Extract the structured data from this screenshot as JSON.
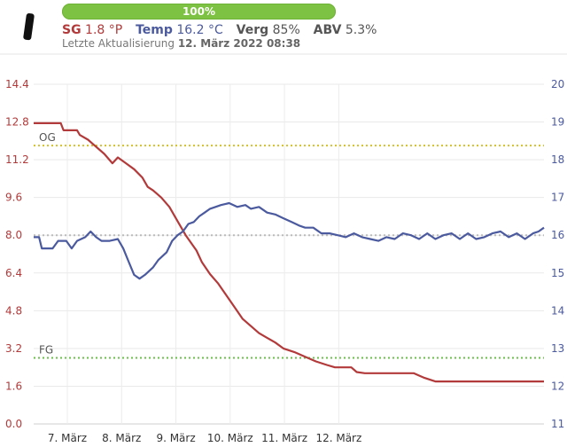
{
  "header": {
    "battery_percent": 100,
    "battery_label": "100%",
    "sg_label": "SG",
    "sg_value": "1.8 °P",
    "temp_label": "Temp",
    "temp_value": "16.2 °C",
    "verg_label": "Verg",
    "verg_value": "85%",
    "abv_label": "ABV",
    "abv_value": "5.3%",
    "updated_label": "Letzte Aktualisierung",
    "updated_value": "12. März 2022 08:38",
    "colors": {
      "sg": "#b23a3a",
      "temp": "#4b5a9e",
      "battery": "#7dc242"
    }
  },
  "chart_data": {
    "type": "line",
    "x": [
      "7. März",
      "8. März",
      "9. März",
      "10. März",
      "11. März",
      "12. März"
    ],
    "left_axis": {
      "ticks": [
        "14.4",
        "12.8",
        "11.2",
        "9.6",
        "8.0",
        "6.4",
        "4.8",
        "3.2",
        "1.6",
        "0.0"
      ],
      "range": [
        0,
        14.4
      ],
      "color": "#b23a3a"
    },
    "right_axis": {
      "ticks": [
        "20",
        "19",
        "18",
        "17",
        "16",
        "15",
        "14",
        "13",
        "12",
        "11"
      ],
      "range": [
        11,
        20
      ],
      "color": "#4b5a9e"
    },
    "reference_lines": [
      {
        "label": "OG",
        "value": 11.8,
        "color": "#d4c12a"
      },
      {
        "label": "FG",
        "value": 2.8,
        "color": "#6ac04a"
      },
      {
        "label": "",
        "value": 8.0,
        "color": "#bbbbbb"
      }
    ],
    "series": [
      {
        "name": "SG",
        "axis": "left",
        "color": "#b23a3a",
        "points": [
          [
            0.0,
            12.75
          ],
          [
            0.35,
            12.75
          ],
          [
            0.5,
            12.75
          ],
          [
            0.55,
            12.45
          ],
          [
            0.8,
            12.45
          ],
          [
            0.85,
            12.25
          ],
          [
            1.0,
            12.05
          ],
          [
            1.1,
            11.85
          ],
          [
            1.3,
            11.45
          ],
          [
            1.45,
            11.05
          ],
          [
            1.55,
            11.3
          ],
          [
            1.7,
            11.05
          ],
          [
            1.85,
            10.8
          ],
          [
            2.0,
            10.45
          ],
          [
            2.1,
            10.05
          ],
          [
            2.2,
            9.9
          ],
          [
            2.35,
            9.6
          ],
          [
            2.5,
            9.2
          ],
          [
            2.65,
            8.6
          ],
          [
            2.8,
            8.0
          ],
          [
            3.0,
            7.35
          ],
          [
            3.1,
            6.85
          ],
          [
            3.25,
            6.35
          ],
          [
            3.4,
            5.95
          ],
          [
            3.55,
            5.45
          ],
          [
            3.7,
            4.95
          ],
          [
            3.85,
            4.45
          ],
          [
            4.0,
            4.15
          ],
          [
            4.15,
            3.85
          ],
          [
            4.3,
            3.65
          ],
          [
            4.45,
            3.45
          ],
          [
            4.6,
            3.2
          ],
          [
            4.8,
            3.05
          ],
          [
            5.0,
            2.85
          ],
          [
            5.2,
            2.65
          ],
          [
            5.4,
            2.5
          ],
          [
            5.55,
            2.4
          ],
          [
            5.85,
            2.4
          ],
          [
            5.95,
            2.2
          ],
          [
            6.1,
            2.15
          ],
          [
            7.0,
            2.15
          ],
          [
            7.1,
            2.05
          ],
          [
            7.2,
            1.95
          ],
          [
            7.4,
            1.8
          ],
          [
            8.0,
            1.8
          ],
          [
            9.4,
            1.8
          ]
        ]
      },
      {
        "name": "Temp",
        "axis": "right",
        "color": "#4b5a9e",
        "points": [
          [
            0.0,
            15.95
          ],
          [
            0.1,
            15.95
          ],
          [
            0.15,
            15.65
          ],
          [
            0.35,
            15.65
          ],
          [
            0.45,
            15.85
          ],
          [
            0.6,
            15.85
          ],
          [
            0.7,
            15.65
          ],
          [
            0.8,
            15.85
          ],
          [
            0.95,
            15.95
          ],
          [
            1.05,
            16.1
          ],
          [
            1.15,
            15.95
          ],
          [
            1.25,
            15.85
          ],
          [
            1.4,
            15.85
          ],
          [
            1.55,
            15.9
          ],
          [
            1.65,
            15.65
          ],
          [
            1.75,
            15.3
          ],
          [
            1.85,
            14.95
          ],
          [
            1.95,
            14.85
          ],
          [
            2.05,
            14.95
          ],
          [
            2.2,
            15.15
          ],
          [
            2.3,
            15.35
          ],
          [
            2.45,
            15.55
          ],
          [
            2.55,
            15.85
          ],
          [
            2.65,
            16.0
          ],
          [
            2.75,
            16.1
          ],
          [
            2.85,
            16.3
          ],
          [
            2.95,
            16.35
          ],
          [
            3.05,
            16.5
          ],
          [
            3.15,
            16.6
          ],
          [
            3.25,
            16.7
          ],
          [
            3.35,
            16.75
          ],
          [
            3.45,
            16.8
          ],
          [
            3.6,
            16.85
          ],
          [
            3.75,
            16.75
          ],
          [
            3.9,
            16.8
          ],
          [
            4.0,
            16.7
          ],
          [
            4.15,
            16.75
          ],
          [
            4.3,
            16.6
          ],
          [
            4.45,
            16.55
          ],
          [
            4.6,
            16.45
          ],
          [
            4.75,
            16.35
          ],
          [
            4.9,
            16.25
          ],
          [
            5.0,
            16.2
          ],
          [
            5.15,
            16.2
          ],
          [
            5.3,
            16.05
          ],
          [
            5.45,
            16.05
          ],
          [
            5.6,
            16.0
          ],
          [
            5.75,
            15.95
          ],
          [
            5.9,
            16.05
          ],
          [
            6.05,
            15.95
          ],
          [
            6.2,
            15.9
          ],
          [
            6.35,
            15.85
          ],
          [
            6.5,
            15.95
          ],
          [
            6.65,
            15.9
          ],
          [
            6.8,
            16.05
          ],
          [
            6.95,
            16.0
          ],
          [
            7.1,
            15.9
          ],
          [
            7.25,
            16.05
          ],
          [
            7.4,
            15.9
          ],
          [
            7.55,
            16.0
          ],
          [
            7.7,
            16.05
          ],
          [
            7.85,
            15.9
          ],
          [
            8.0,
            16.05
          ],
          [
            8.15,
            15.9
          ],
          [
            8.3,
            15.95
          ],
          [
            8.45,
            16.05
          ],
          [
            8.6,
            16.1
          ],
          [
            8.75,
            15.95
          ],
          [
            8.9,
            16.05
          ],
          [
            9.05,
            15.9
          ],
          [
            9.2,
            16.05
          ],
          [
            9.3,
            16.1
          ],
          [
            9.4,
            16.2
          ]
        ]
      }
    ],
    "x_positions": [
      0.62,
      1.62,
      2.62,
      3.62,
      4.62,
      5.62
    ],
    "grid": true
  }
}
